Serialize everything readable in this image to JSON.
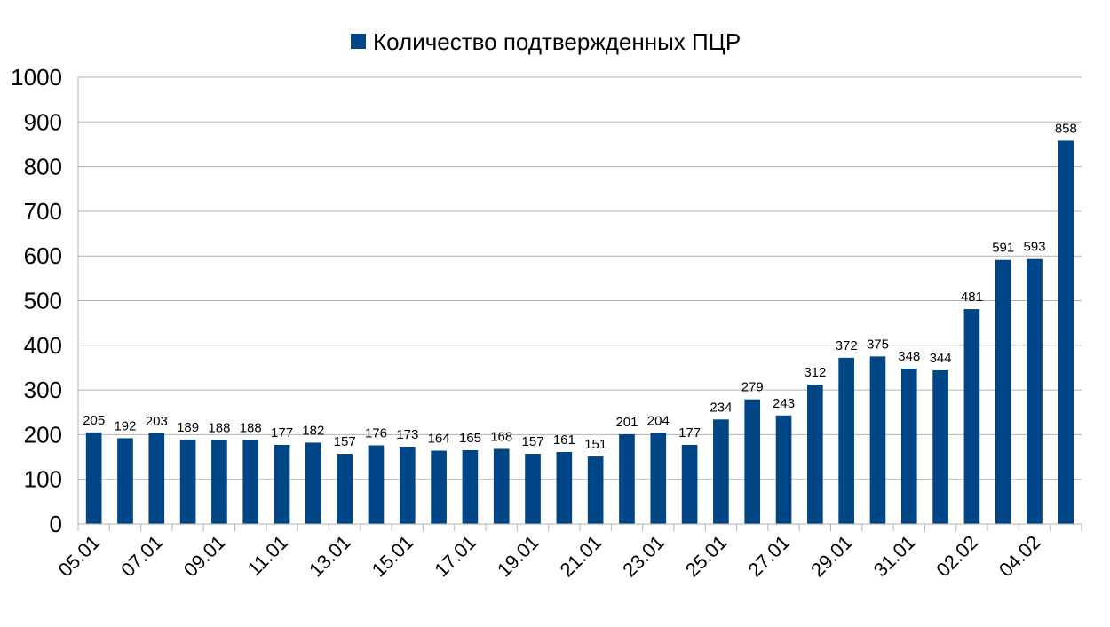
{
  "chart_data": {
    "type": "bar",
    "title": "",
    "xlabel": "",
    "ylabel": "",
    "ylim": [
      0,
      1000
    ],
    "y_ticks": [
      0,
      100,
      200,
      300,
      400,
      500,
      600,
      700,
      800,
      900,
      1000
    ],
    "grid": true,
    "legend_placement": "top-center",
    "categories": [
      "05.01",
      "06.01",
      "07.01",
      "08.01",
      "09.01",
      "10.01",
      "11.01",
      "12.01",
      "13.01",
      "14.01",
      "15.01",
      "16.01",
      "17.01",
      "18.01",
      "19.01",
      "20.01",
      "21.01",
      "22.01",
      "23.01",
      "24.01",
      "25.01",
      "26.01",
      "27.01",
      "28.01",
      "29.01",
      "30.01",
      "31.01",
      "01.02",
      "02.02",
      "03.02",
      "04.02",
      "05.02"
    ],
    "x_tick_labels": [
      "05.01",
      "07.01",
      "09.01",
      "11.01",
      "13.01",
      "15.01",
      "17.01",
      "19.01",
      "21.01",
      "23.01",
      "25.01",
      "27.01",
      "29.01",
      "31.01",
      "02.02",
      "04.02"
    ],
    "series": [
      {
        "name": "Количество подтвержденных ПЦР",
        "color": "#004586",
        "values": [
          205,
          192,
          203,
          189,
          188,
          188,
          177,
          182,
          157,
          176,
          173,
          164,
          165,
          168,
          157,
          161,
          151,
          201,
          204,
          177,
          234,
          279,
          243,
          312,
          372,
          375,
          348,
          344,
          481,
          591,
          593,
          858
        ]
      }
    ]
  }
}
